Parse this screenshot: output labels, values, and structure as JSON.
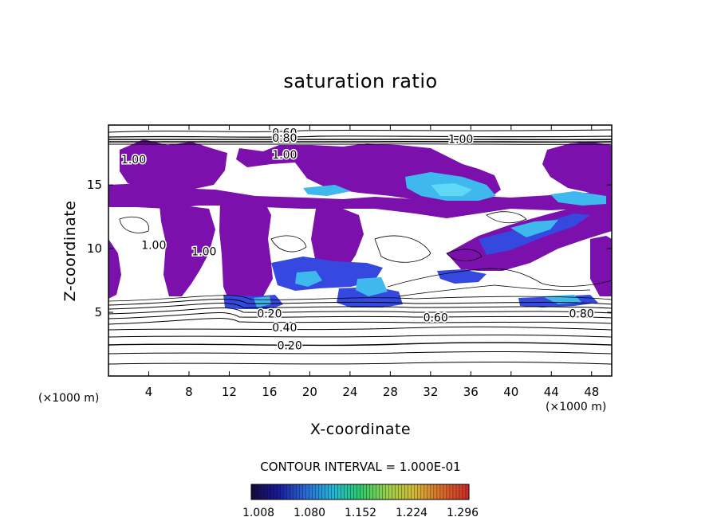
{
  "chart_data": {
    "type": "heatmap",
    "title": "saturation ratio",
    "xlabel": "X-coordinate",
    "ylabel": "Z-coordinate",
    "x_unit": "(×1000 m)",
    "x_unit_right": "(×1000 m)",
    "xlim": [
      0,
      50
    ],
    "ylim": [
      0,
      19.7
    ],
    "x_ticks": [
      4,
      8,
      12,
      16,
      20,
      24,
      28,
      32,
      36,
      40,
      44,
      48
    ],
    "y_ticks": [
      5,
      10,
      15
    ],
    "contour_interval_text": "CONTOUR INTERVAL = 1.000E-01",
    "contour_labels": [
      {
        "text": "0.20",
        "x": 18,
        "z": 2.4
      },
      {
        "text": "0.40",
        "x": 17.5,
        "z": 3.8
      },
      {
        "text": "0.20",
        "x": 16,
        "z": 4.9
      },
      {
        "text": "0.60",
        "x": 32.5,
        "z": 4.6
      },
      {
        "text": "0.80",
        "x": 47,
        "z": 4.9
      },
      {
        "text": "0.60",
        "x": 17.5,
        "z": 19.1
      },
      {
        "text": "0.80",
        "x": 17.5,
        "z": 18.7
      },
      {
        "text": "1.00",
        "x": 17.5,
        "z": 17.4
      },
      {
        "text": "1.00",
        "x": 35,
        "z": 18.6
      },
      {
        "text": "1.00",
        "x": 2.5,
        "z": 17
      },
      {
        "text": "1.00",
        "x": 9.5,
        "z": 9.8
      },
      {
        "text": "1.00",
        "x": 4.5,
        "z": 10.3
      }
    ],
    "colorbar": {
      "tick_labels": [
        "1.008",
        "1.080",
        "1.152",
        "1.224",
        "1.296"
      ],
      "colors": [
        "#140a3c",
        "#1a1a9a",
        "#2a6ad6",
        "#23b6d6",
        "#2cc86a",
        "#9ad04a",
        "#d4b838",
        "#d86a2a",
        "#cc2a28"
      ]
    },
    "colors": {
      "purple": "#7b10ad",
      "blue": "#3548e0",
      "lightblue": "#3fb8ee",
      "lightblue2": "#5fd8f5"
    }
  }
}
